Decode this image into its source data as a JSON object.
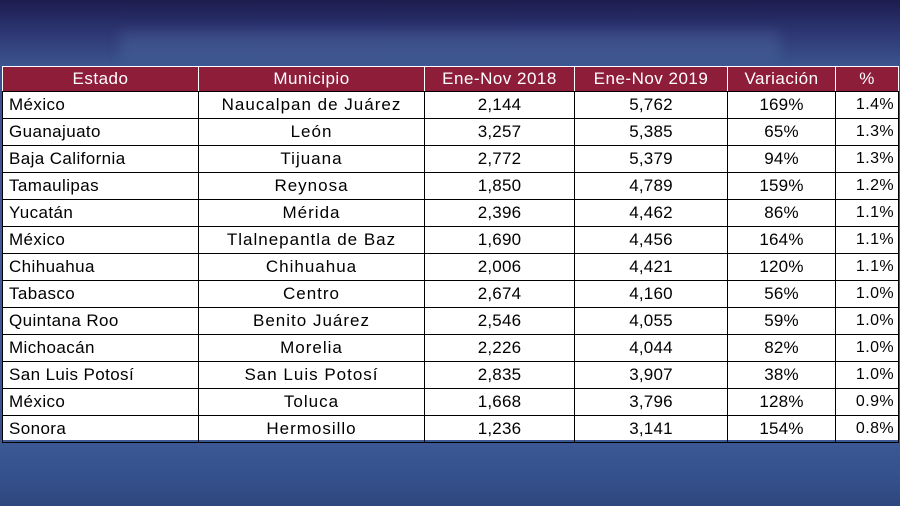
{
  "table": {
    "headers": [
      "Estado",
      "Municipio",
      "Ene-Nov 2018",
      "Ene-Nov 2019",
      "Variación",
      "%"
    ],
    "rows": [
      [
        "México",
        "Naucalpan de Juárez",
        "2,144",
        "5,762",
        "169%",
        "1.4%"
      ],
      [
        "Guanajuato",
        "León",
        "3,257",
        "5,385",
        "65%",
        "1.3%"
      ],
      [
        "Baja California",
        "Tijuana",
        "2,772",
        "5,379",
        "94%",
        "1.3%"
      ],
      [
        "Tamaulipas",
        "Reynosa",
        "1,850",
        "4,789",
        "159%",
        "1.2%"
      ],
      [
        "Yucatán",
        "Mérida",
        "2,396",
        "4,462",
        "86%",
        "1.1%"
      ],
      [
        "México",
        "Tlalnepantla de Baz",
        "1,690",
        "4,456",
        "164%",
        "1.1%"
      ],
      [
        "Chihuahua",
        "Chihuahua",
        "2,006",
        "4,421",
        "120%",
        "1.1%"
      ],
      [
        "Tabasco",
        "Centro",
        "2,674",
        "4,160",
        "56%",
        "1.0%"
      ],
      [
        "Quintana Roo",
        "Benito Juárez",
        "2,546",
        "4,055",
        "59%",
        "1.0%"
      ],
      [
        "Michoacán",
        "Morelia",
        "2,226",
        "4,044",
        "82%",
        "1.0%"
      ],
      [
        "San Luis Potosí",
        "San Luis Potosí",
        "2,835",
        "3,907",
        "38%",
        "1.0%"
      ],
      [
        "México",
        "Toluca",
        "1,668",
        "3,796",
        "128%",
        "0.9%"
      ],
      [
        "Sonora",
        "Hermosillo",
        "1,236",
        "3,141",
        "154%",
        "0.8%"
      ]
    ]
  },
  "colors": {
    "header_background": "#8e1d39",
    "header_text": "#ffffff",
    "background_blue": "#405a98"
  }
}
